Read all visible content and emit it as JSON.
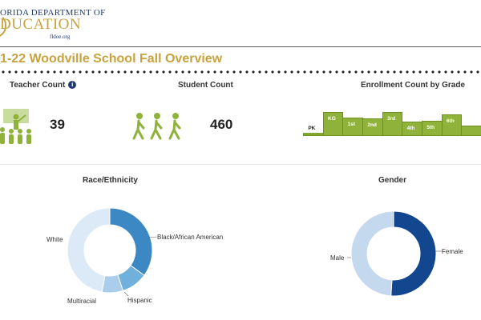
{
  "logo": {
    "line1": "ORIDA DEPARTMENT OF",
    "line2": "DUCATION",
    "url": "fldoe.org"
  },
  "page_title": "1-22 Woodville School Fall Overview",
  "teacher": {
    "title": "Teacher Count",
    "info_icon": "i",
    "value": "39"
  },
  "student": {
    "title": "Student Count",
    "value": "460"
  },
  "enrollment": {
    "title": "Enrollment Count by Grade",
    "grades": [
      {
        "label": "PK",
        "value": 3
      },
      {
        "label": "KG",
        "value": 30
      },
      {
        "label": "1st",
        "value": 23
      },
      {
        "label": "2nd",
        "value": 22
      },
      {
        "label": "3rd",
        "value": 30
      },
      {
        "label": "4th",
        "value": 18
      },
      {
        "label": "5th",
        "value": 19
      },
      {
        "label": "6th",
        "value": 27
      },
      {
        "label": "",
        "value": 13
      }
    ]
  },
  "race": {
    "title": "Race/Ethnicity",
    "labels": {
      "white": "White",
      "black": "Black/African American",
      "multiracial": "Multiracial",
      "hispanic": "Hispanic"
    }
  },
  "gender": {
    "title": "Gender",
    "labels": {
      "male": "Male",
      "female": "Female"
    }
  },
  "chart_data": [
    {
      "type": "bar",
      "title": "Enrollment Count by Grade",
      "categories": [
        "PK",
        "KG",
        "1st",
        "2nd",
        "3rd",
        "4th",
        "5th",
        "6th",
        ""
      ],
      "values": [
        3,
        30,
        23,
        22,
        30,
        18,
        19,
        27,
        13
      ]
    },
    {
      "type": "pie",
      "title": "Race/Ethnicity",
      "categories": [
        "Black/African American",
        "Hispanic",
        "Multiracial",
        "White"
      ],
      "values": [
        35,
        10,
        8,
        47
      ],
      "colors": [
        "#3b88c4",
        "#6fb0dd",
        "#a9cdea",
        "#dce9f6"
      ]
    },
    {
      "type": "pie",
      "title": "Gender",
      "categories": [
        "Female",
        "Male"
      ],
      "values": [
        51,
        49
      ],
      "colors": [
        "#12478f",
        "#c4d8ee"
      ]
    }
  ],
  "colors": {
    "gold": "#c8a23d",
    "navy": "#1f3b73",
    "green": "#8fb23b"
  },
  "icons": {
    "teacher": "teacher-classroom-icon",
    "students": "walking-students-icon"
  }
}
